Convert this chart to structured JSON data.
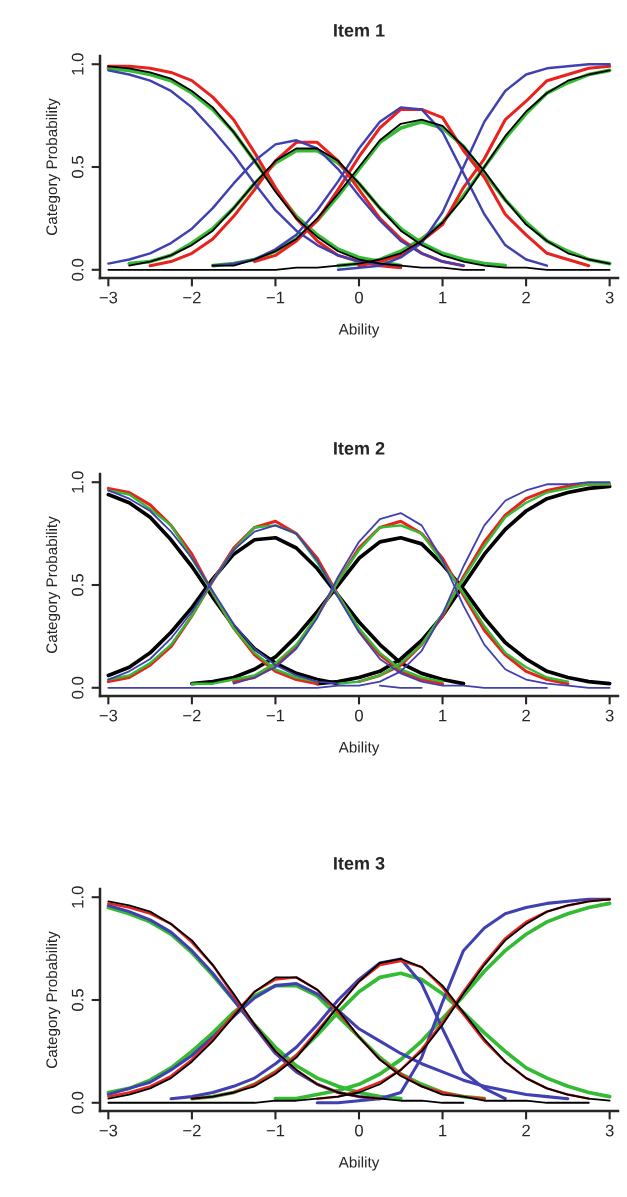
{
  "chart_data": [
    {
      "type": "line",
      "title": "Item 1",
      "xlabel": "Ability",
      "ylabel": "Category Probability",
      "x": [
        -3,
        -2.75,
        -2.5,
        -2.25,
        -2,
        -1.75,
        -1.5,
        -1.25,
        -1,
        -0.75,
        -0.5,
        -0.25,
        0,
        0.25,
        0.5,
        0.75,
        1,
        1.25,
        1.5,
        1.75,
        2,
        2.25,
        2.5,
        2.75,
        3
      ],
      "xlim": [
        -3.1,
        3.1
      ],
      "ylim": [
        -0.04,
        1.04
      ],
      "xticks": [
        {
          "value": -3,
          "label": "−3"
        },
        {
          "value": -2,
          "label": "−2"
        },
        {
          "value": -1,
          "label": "−1"
        },
        0,
        1,
        2,
        3
      ],
      "yticks": [
        {
          "value": 0,
          "label": "0.0"
        },
        {
          "value": 0.5,
          "label": "0.5"
        },
        {
          "value": 1,
          "label": "1.0"
        }
      ],
      "series": [
        {
          "color": "#33bb33",
          "values": [
            0.98,
            0.97,
            0.95,
            0.92,
            0.86,
            0.78,
            0.67,
            0.53,
            0.39,
            0.26,
            0.17,
            0.1,
            0.06,
            0.04,
            0.02,
            null,
            null,
            null,
            null,
            null,
            null,
            null,
            null,
            null,
            null
          ]
        },
        {
          "color": "#33bb33",
          "values": [
            null,
            0.03,
            0.04,
            0.07,
            0.13,
            0.2,
            0.3,
            0.42,
            0.52,
            0.58,
            0.58,
            0.52,
            0.42,
            0.3,
            0.2,
            0.13,
            0.08,
            0.05,
            0.03,
            0.02,
            null,
            null,
            null,
            null,
            null
          ]
        },
        {
          "color": "#33bb33",
          "values": [
            null,
            null,
            null,
            null,
            null,
            0.02,
            0.03,
            0.05,
            0.09,
            0.15,
            0.24,
            0.36,
            0.49,
            0.62,
            0.69,
            0.72,
            0.69,
            0.6,
            0.47,
            0.34,
            0.23,
            0.14,
            0.09,
            0.05,
            0.03
          ]
        },
        {
          "color": "#33bb33",
          "values": [
            null,
            null,
            null,
            null,
            null,
            null,
            null,
            null,
            null,
            null,
            null,
            0.02,
            0.03,
            0.05,
            0.09,
            0.15,
            0.23,
            0.36,
            0.5,
            0.64,
            0.76,
            0.86,
            0.91,
            0.95,
            0.97
          ]
        },
        {
          "color": "#e8231e",
          "values": [
            0.99,
            0.99,
            0.98,
            0.96,
            0.92,
            0.84,
            0.73,
            0.57,
            0.4,
            0.25,
            0.14,
            0.07,
            0.04,
            0.02,
            0.01,
            null,
            null,
            null,
            null,
            null,
            null,
            null,
            null,
            null,
            null
          ]
        },
        {
          "color": "#e8231e",
          "values": [
            null,
            null,
            0.02,
            0.04,
            0.08,
            0.15,
            0.26,
            0.39,
            0.53,
            0.62,
            0.62,
            0.53,
            0.39,
            0.25,
            0.15,
            0.08,
            0.04,
            0.02,
            null,
            null,
            null,
            null,
            null,
            null,
            null
          ]
        },
        {
          "color": "#e8231e",
          "values": [
            null,
            null,
            null,
            null,
            null,
            null,
            null,
            0.04,
            0.07,
            0.14,
            0.24,
            0.39,
            0.55,
            0.69,
            0.78,
            0.78,
            0.74,
            0.58,
            0.45,
            0.27,
            0.17,
            0.08,
            0.05,
            0.02,
            null
          ]
        },
        {
          "color": "#e8231e",
          "values": [
            null,
            null,
            null,
            null,
            null,
            null,
            null,
            null,
            null,
            null,
            null,
            null,
            0.02,
            0.04,
            0.07,
            0.14,
            0.22,
            0.4,
            0.54,
            0.73,
            0.82,
            0.92,
            0.95,
            0.98,
            0.99
          ]
        },
        {
          "color": "#4040b0",
          "values": [
            0.97,
            0.95,
            0.92,
            0.87,
            0.79,
            0.68,
            0.56,
            0.42,
            0.29,
            0.19,
            0.12,
            0.07,
            0.04,
            0.03,
            0.02,
            null,
            null,
            null,
            null,
            null,
            null,
            null,
            null,
            null,
            null
          ]
        },
        {
          "color": "#4040b0",
          "values": [
            0.03,
            0.05,
            0.08,
            0.13,
            0.2,
            0.3,
            0.42,
            0.53,
            0.61,
            0.63,
            0.59,
            0.49,
            0.36,
            0.24,
            0.14,
            0.08,
            0.04,
            0.02,
            null,
            null,
            null,
            null,
            null,
            null,
            null
          ]
        },
        {
          "color": "#4040b0",
          "values": [
            null,
            null,
            null,
            null,
            null,
            0.02,
            0.03,
            0.05,
            0.1,
            0.17,
            0.29,
            0.43,
            0.59,
            0.72,
            0.79,
            0.78,
            0.67,
            0.47,
            0.27,
            0.12,
            0.05,
            0.02,
            null,
            null,
            null
          ]
        },
        {
          "color": "#4040b0",
          "values": [
            null,
            null,
            null,
            null,
            null,
            null,
            null,
            null,
            null,
            null,
            null,
            0,
            0.01,
            0.02,
            0.06,
            0.13,
            0.28,
            0.5,
            0.72,
            0.87,
            0.95,
            0.98,
            0.99,
            1.0,
            1.0
          ]
        },
        {
          "color": "#000000",
          "values": [
            0.99,
            0.98,
            0.96,
            0.93,
            0.87,
            0.79,
            0.67,
            0.53,
            0.38,
            0.25,
            0.16,
            0.09,
            0.05,
            0.03,
            0.02,
            0.01,
            0.01,
            0,
            0,
            null,
            null,
            null,
            null,
            null,
            null
          ]
        },
        {
          "color": "#000000",
          "values": [
            null,
            0.02,
            0.04,
            0.07,
            0.12,
            0.19,
            0.3,
            0.42,
            0.53,
            0.59,
            0.59,
            0.53,
            0.42,
            0.3,
            0.19,
            0.12,
            0.07,
            0.04,
            0.02,
            0.01,
            0.01,
            0,
            0,
            0,
            0
          ]
        },
        {
          "color": "#000000",
          "values": [
            null,
            null,
            null,
            null,
            null,
            0.02,
            0.02,
            0.05,
            0.09,
            0.15,
            0.25,
            0.37,
            0.5,
            0.63,
            0.71,
            0.73,
            0.7,
            0.6,
            0.48,
            0.34,
            0.22,
            0.14,
            0.08,
            0.05,
            0.03
          ]
        },
        {
          "color": "#000000",
          "values": [
            0,
            0,
            0,
            0,
            0,
            0,
            0,
            0,
            0,
            0.01,
            0.01,
            0.02,
            0.03,
            0.05,
            0.08,
            0.14,
            0.23,
            0.35,
            0.5,
            0.65,
            0.77,
            0.86,
            0.92,
            0.95,
            0.97
          ]
        }
      ]
    },
    {
      "type": "line",
      "title": "Item 2",
      "xlabel": "Ability",
      "ylabel": "Category Probability",
      "x": [
        -3,
        -2.75,
        -2.5,
        -2.25,
        -2,
        -1.75,
        -1.5,
        -1.25,
        -1,
        -0.75,
        -0.5,
        -0.25,
        0,
        0.25,
        0.5,
        0.75,
        1,
        1.25,
        1.5,
        1.75,
        2,
        2.25,
        2.5,
        2.75,
        3
      ],
      "xlim": [
        -3.1,
        3.1
      ],
      "ylim": [
        -0.04,
        1.04
      ],
      "xticks": [
        {
          "value": -3,
          "label": "−3"
        },
        {
          "value": -2,
          "label": "−2"
        },
        {
          "value": -1,
          "label": "−1"
        },
        0,
        1,
        2,
        3
      ],
      "yticks": [
        {
          "value": 0,
          "label": "0.0"
        },
        {
          "value": 0.5,
          "label": "0.5"
        },
        {
          "value": 1,
          "label": "1.0"
        }
      ],
      "series": [
        {
          "color": "#000000",
          "values": [
            0.94,
            0.9,
            0.83,
            0.72,
            0.59,
            0.44,
            0.3,
            0.19,
            0.12,
            0.07,
            0.04,
            0.02,
            null,
            null,
            null,
            null,
            null,
            null,
            null,
            null,
            null,
            null,
            null,
            null,
            null
          ]
        },
        {
          "color": "#000000",
          "values": [
            0.06,
            0.1,
            0.17,
            0.27,
            0.39,
            0.53,
            0.65,
            0.72,
            0.73,
            0.68,
            0.58,
            0.45,
            0.32,
            0.21,
            0.12,
            0.07,
            0.04,
            0.02,
            null,
            null,
            null,
            null,
            null,
            null,
            null
          ]
        },
        {
          "color": "#000000",
          "values": [
            null,
            null,
            null,
            null,
            0.02,
            0.03,
            0.05,
            0.09,
            0.15,
            0.25,
            0.37,
            0.5,
            0.63,
            0.71,
            0.73,
            0.7,
            0.6,
            0.48,
            0.34,
            0.22,
            0.14,
            0.08,
            0.05,
            0.03,
            0.02
          ]
        },
        {
          "color": "#000000",
          "values": [
            null,
            null,
            null,
            null,
            null,
            null,
            null,
            null,
            null,
            null,
            0.02,
            0.03,
            0.05,
            0.08,
            0.14,
            0.23,
            0.35,
            0.5,
            0.65,
            0.77,
            0.86,
            0.92,
            0.95,
            0.97,
            0.98
          ]
        },
        {
          "color": "#e8231e",
          "values": [
            0.97,
            0.95,
            0.89,
            0.79,
            0.65,
            0.46,
            0.29,
            0.16,
            0.08,
            0.04,
            0.02,
            null,
            null,
            null,
            null,
            null,
            null,
            null,
            null,
            null,
            null,
            null,
            null,
            null,
            null
          ]
        },
        {
          "color": "#e8231e",
          "values": [
            0.03,
            0.05,
            0.11,
            0.2,
            0.35,
            0.52,
            0.68,
            0.78,
            0.81,
            0.75,
            0.63,
            0.45,
            0.28,
            0.16,
            0.08,
            0.04,
            0.02,
            null,
            null,
            null,
            null,
            null,
            null,
            null,
            null
          ]
        },
        {
          "color": "#e8231e",
          "values": [
            null,
            null,
            null,
            null,
            null,
            null,
            0.03,
            0.05,
            0.11,
            0.2,
            0.35,
            0.52,
            0.68,
            0.78,
            0.81,
            0.75,
            0.63,
            0.45,
            0.28,
            0.16,
            0.08,
            0.04,
            0.02,
            null,
            null
          ]
        },
        {
          "color": "#e8231e",
          "values": [
            null,
            null,
            null,
            null,
            null,
            null,
            null,
            null,
            null,
            null,
            null,
            null,
            0.03,
            0.06,
            0.11,
            0.21,
            0.35,
            0.54,
            0.71,
            0.84,
            0.92,
            0.96,
            0.98,
            0.99,
            0.99
          ]
        },
        {
          "color": "#33bb33",
          "values": [
            0.96,
            0.94,
            0.87,
            0.79,
            0.63,
            0.46,
            0.29,
            0.17,
            0.09,
            0.05,
            0.03,
            null,
            null,
            null,
            null,
            null,
            null,
            null,
            null,
            null,
            null,
            null,
            null,
            null,
            null
          ]
        },
        {
          "color": "#33bb33",
          "values": [
            0.04,
            0.06,
            0.12,
            0.21,
            0.35,
            0.52,
            0.67,
            0.78,
            0.79,
            0.75,
            0.61,
            0.45,
            0.29,
            0.17,
            0.09,
            0.05,
            0.03,
            null,
            null,
            null,
            null,
            null,
            null,
            null,
            null
          ]
        },
        {
          "color": "#33bb33",
          "values": [
            null,
            null,
            null,
            null,
            0.02,
            0.02,
            0.04,
            0.06,
            0.12,
            0.21,
            0.35,
            0.52,
            0.67,
            0.78,
            0.79,
            0.75,
            0.61,
            0.46,
            0.3,
            0.17,
            0.1,
            0.05,
            0.03,
            null,
            null
          ]
        },
        {
          "color": "#33bb33",
          "values": [
            null,
            null,
            null,
            null,
            null,
            null,
            null,
            null,
            null,
            null,
            null,
            0.02,
            0.03,
            0.06,
            0.12,
            0.21,
            0.36,
            0.53,
            0.69,
            0.83,
            0.9,
            0.95,
            0.97,
            0.99,
            0.99
          ]
        },
        {
          "color": "#4040b0",
          "values": [
            0.96,
            0.92,
            0.86,
            0.76,
            0.63,
            0.47,
            0.31,
            0.19,
            0.11,
            0.06,
            0.03,
            0.02,
            null,
            0.01,
            0,
            0,
            null,
            null,
            null,
            null,
            null,
            null,
            null,
            null,
            null
          ]
        },
        {
          "color": "#4040b0",
          "values": [
            0.04,
            0.08,
            0.14,
            0.24,
            0.37,
            0.52,
            0.67,
            0.76,
            0.79,
            0.75,
            0.62,
            0.44,
            0.27,
            0.14,
            0.07,
            0.03,
            0.01,
            0.01,
            0,
            0,
            0,
            0,
            null,
            null,
            null
          ]
        },
        {
          "color": "#4040b0",
          "values": [
            null,
            null,
            null,
            null,
            null,
            null,
            0.02,
            0.05,
            0.1,
            0.19,
            0.34,
            0.54,
            0.71,
            0.82,
            0.85,
            0.79,
            0.62,
            0.4,
            0.21,
            0.09,
            0.04,
            0.02,
            0.01,
            0,
            0
          ]
        },
        {
          "color": "#4040b0",
          "values": [
            0,
            0,
            0,
            0,
            0,
            0,
            0,
            0,
            0,
            0,
            0,
            0.01,
            0.01,
            0.03,
            0.08,
            0.18,
            0.36,
            0.59,
            0.79,
            0.91,
            0.96,
            0.99,
            0.99,
            1.0,
            1.0
          ]
        }
      ]
    },
    {
      "type": "line",
      "title": "Item 3",
      "xlabel": "Ability",
      "ylabel": "Category Probability",
      "x": [
        -3,
        -2.75,
        -2.5,
        -2.25,
        -2,
        -1.75,
        -1.5,
        -1.25,
        -1,
        -0.75,
        -0.5,
        -0.25,
        0,
        0.25,
        0.5,
        0.75,
        1,
        1.25,
        1.5,
        1.75,
        2,
        2.25,
        2.5,
        2.75,
        3
      ],
      "xlim": [
        -3.1,
        3.1
      ],
      "ylim": [
        -0.04,
        1.04
      ],
      "xticks": [
        {
          "value": -3,
          "label": "−3"
        },
        {
          "value": -2,
          "label": "−2"
        },
        {
          "value": -1,
          "label": "−1"
        },
        0,
        1,
        2,
        3
      ],
      "yticks": [
        {
          "value": 0,
          "label": "0.0"
        },
        {
          "value": 0.5,
          "label": "0.5"
        },
        {
          "value": 1,
          "label": "1.0"
        }
      ],
      "series": [
        {
          "color": "#33bb33",
          "values": [
            0.95,
            0.92,
            0.88,
            0.82,
            0.73,
            0.62,
            0.5,
            0.38,
            0.27,
            0.18,
            0.12,
            0.08,
            0.05,
            0.03,
            0.02,
            null,
            null,
            null,
            null,
            null,
            null,
            null,
            null,
            null,
            null
          ]
        },
        {
          "color": "#33bb33",
          "values": [
            0.05,
            0.07,
            0.11,
            0.17,
            0.25,
            0.34,
            0.44,
            0.52,
            0.57,
            0.57,
            0.52,
            0.42,
            0.32,
            0.22,
            0.14,
            0.09,
            0.05,
            0.03,
            0.02,
            null,
            null,
            null,
            null,
            null,
            null
          ]
        },
        {
          "color": "#33bb33",
          "values": [
            null,
            null,
            null,
            null,
            0.02,
            0.03,
            0.05,
            0.09,
            0.15,
            0.23,
            0.33,
            0.44,
            0.54,
            0.61,
            0.63,
            0.6,
            0.53,
            0.44,
            0.34,
            0.25,
            0.17,
            0.12,
            0.08,
            0.05,
            0.03
          ]
        },
        {
          "color": "#33bb33",
          "values": [
            null,
            null,
            null,
            null,
            null,
            null,
            null,
            null,
            0.02,
            0.02,
            0.04,
            0.06,
            0.09,
            0.14,
            0.21,
            0.3,
            0.41,
            0.52,
            0.64,
            0.74,
            0.82,
            0.88,
            0.92,
            0.95,
            0.97
          ]
        },
        {
          "color": "#4040b0",
          "values": [
            0.96,
            0.93,
            0.89,
            0.83,
            0.74,
            0.63,
            0.5,
            0.37,
            0.24,
            0.15,
            0.09,
            0.05,
            0.03,
            0.02,
            null,
            null,
            null,
            null,
            null,
            null,
            null,
            null,
            null,
            null,
            null
          ]
        },
        {
          "color": "#4040b0",
          "values": [
            0.04,
            0.07,
            0.1,
            0.16,
            0.23,
            0.32,
            0.42,
            0.51,
            0.57,
            0.58,
            0.53,
            0.45,
            0.36,
            0.3,
            0.24,
            0.19,
            0.15,
            0.11,
            0.08,
            0.06,
            0.04,
            0.03,
            0.02,
            null,
            null
          ]
        },
        {
          "color": "#4040b0",
          "values": [
            null,
            null,
            null,
            0.02,
            0.03,
            0.05,
            0.08,
            0.12,
            0.19,
            0.27,
            0.38,
            0.5,
            0.6,
            0.68,
            0.7,
            0.58,
            0.36,
            0.15,
            0.07,
            0.02,
            null,
            null,
            null,
            null,
            null
          ]
        },
        {
          "color": "#4040b0",
          "values": [
            null,
            null,
            null,
            null,
            null,
            null,
            null,
            null,
            null,
            null,
            0,
            0,
            0.01,
            0.02,
            0.05,
            0.22,
            0.49,
            0.74,
            0.85,
            0.92,
            0.95,
            0.97,
            0.98,
            0.99,
            0.99
          ]
        },
        {
          "color": "#e8231e",
          "values": [
            0.97,
            0.95,
            0.92,
            0.87,
            0.78,
            0.67,
            0.52,
            0.38,
            0.25,
            0.16,
            0.09,
            0.05,
            0.03,
            0.02,
            null,
            null,
            null,
            null,
            null,
            null,
            null,
            null,
            null,
            null,
            null
          ]
        },
        {
          "color": "#e8231e",
          "values": [
            0.03,
            0.05,
            0.08,
            0.13,
            0.21,
            0.31,
            0.43,
            0.54,
            0.6,
            0.61,
            0.55,
            0.44,
            0.32,
            0.21,
            0.14,
            0.08,
            0.05,
            0.03,
            0.02,
            null,
            null,
            null,
            null,
            null,
            null
          ]
        },
        {
          "color": "#e8231e",
          "values": [
            null,
            null,
            null,
            null,
            0.02,
            0.03,
            0.05,
            0.09,
            0.15,
            0.23,
            0.35,
            0.47,
            0.59,
            0.67,
            0.69,
            0.66,
            0.56,
            0.43,
            0.3,
            0.2,
            0.12,
            0.07,
            0.04,
            0.02,
            null
          ]
        },
        {
          "color": "#e8231e",
          "values": [
            null,
            null,
            null,
            null,
            null,
            null,
            null,
            null,
            null,
            null,
            0.02,
            0.03,
            0.06,
            0.1,
            0.16,
            0.26,
            0.39,
            0.54,
            0.68,
            0.8,
            0.88,
            0.93,
            0.96,
            0.98,
            0.99
          ]
        },
        {
          "color": "#000000",
          "values": [
            0.98,
            0.96,
            0.93,
            0.87,
            0.79,
            0.67,
            0.53,
            0.38,
            0.25,
            0.16,
            0.09,
            0.05,
            0.03,
            0.02,
            0.01,
            0.01,
            0,
            0,
            null,
            null,
            null,
            null,
            null,
            null,
            null
          ]
        },
        {
          "color": "#000000",
          "values": [
            0.02,
            0.04,
            0.07,
            0.12,
            0.2,
            0.3,
            0.42,
            0.54,
            0.61,
            0.61,
            0.55,
            0.45,
            0.32,
            0.21,
            0.13,
            0.08,
            0.04,
            0.03,
            0.01,
            0.01,
            0.01,
            0,
            0,
            0,
            null
          ]
        },
        {
          "color": "#000000",
          "values": [
            null,
            null,
            null,
            null,
            0.02,
            0.03,
            0.05,
            0.08,
            0.14,
            0.22,
            0.34,
            0.47,
            0.59,
            0.68,
            0.7,
            0.66,
            0.57,
            0.44,
            0.31,
            0.2,
            0.12,
            0.07,
            0.04,
            0.02,
            0.01
          ]
        },
        {
          "color": "#000000",
          "values": [
            0,
            0,
            0,
            0,
            0,
            0,
            0,
            0,
            0.01,
            0.01,
            0.02,
            0.03,
            0.05,
            0.09,
            0.16,
            0.25,
            0.38,
            0.53,
            0.67,
            0.79,
            0.87,
            0.93,
            0.96,
            0.98,
            0.99
          ]
        }
      ]
    }
  ]
}
